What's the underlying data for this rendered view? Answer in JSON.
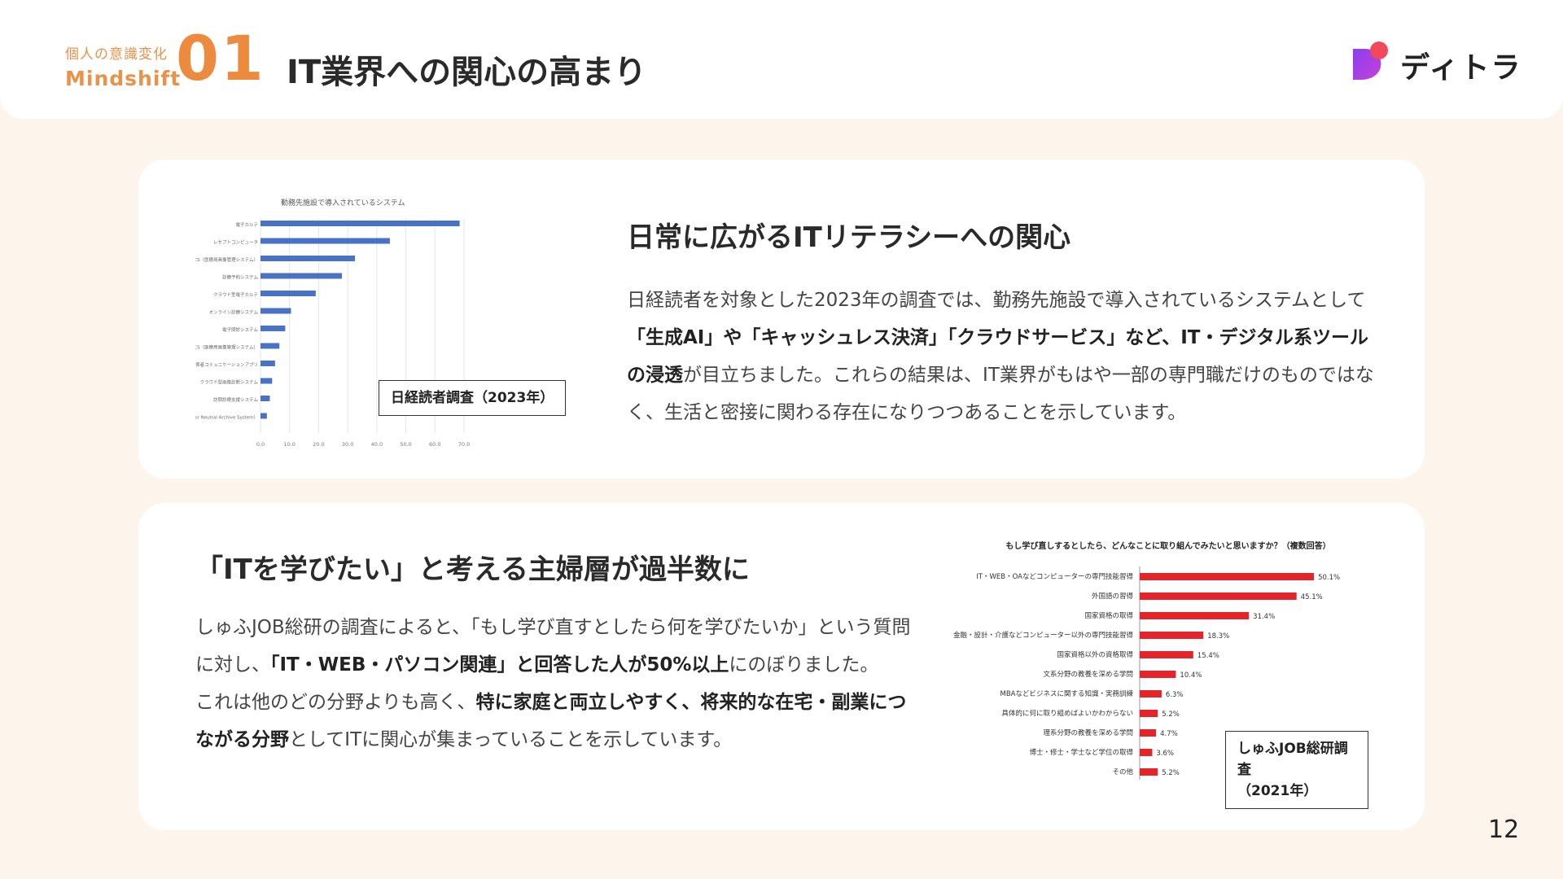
{
  "header": {
    "mindset_jp": "個人の意識変化",
    "mindset_en": "Mindshift",
    "number": "01",
    "title": "IT業界への関心の高まり",
    "logo_text": "ディトラ"
  },
  "card1": {
    "title": "日常に広がるITリテラシーへの関心",
    "body": [
      {
        "text": "日経読者を対象とした2023年の調査では、勤務先施設で導入されているシステムとして",
        "bold": false
      },
      {
        "text": "「生成AI」や「キャッシュレス決済」「クラウドサービス」など、IT・デジタル系ツールの浸透",
        "bold": true
      },
      {
        "text": "が目立ちました。これらの結果は、IT業界がもはや一部の専門職だけのものではなく、生活と密接に関わる存在になりつつあることを示しています。",
        "bold": false
      }
    ],
    "source": "日経読者調査（2023年）"
  },
  "card2": {
    "title": "「ITを学びたい」と考える主婦層が過半数に",
    "body1": [
      {
        "text": "しゅふJOB総研の調査によると、「もし学び直すとしたら何を学びたいか」という質問に対し、",
        "bold": false
      },
      {
        "text": "「IT・WEB・パソコン関連」と回答した人が50%以上",
        "bold": true
      },
      {
        "text": "にのぼりました。",
        "bold": false
      }
    ],
    "body2": [
      {
        "text": " これは他のどの分野よりも高く、",
        "bold": false
      },
      {
        "text": "特に家庭と両立しやすく、将来的な在宅・副業につながる分野",
        "bold": true
      },
      {
        "text": "としてITに関心が集まっていることを示しています。",
        "bold": false
      }
    ],
    "source_line1": "しゅふJOB総研調査",
    "source_line2": "（2021年）"
  },
  "page_number": "12",
  "colors": {
    "accent": "#ec8b3e",
    "bar_blue": "#4a72c4",
    "bar_red": "#e5242a",
    "background": "#fdf4ec"
  },
  "chart_data": [
    {
      "type": "bar",
      "orientation": "horizontal",
      "title": "勤務先施設で導入されているシステム",
      "categories": [
        "電子カルテ",
        "レセプトコンピュータ",
        "PACS（医療用画像管理システム）",
        "診療予約システム",
        "クラウド型電子カルテ",
        "オンライン診療システム",
        "電子問診システム",
        "クラウド型PACS（医療用画像管理システム）",
        "医療関係者コミュニケーションアプリ",
        "クラウド型画像診断システム",
        "訪問診療支援システム",
        "VNAシステム（Vendor Neutral Archive System）"
      ],
      "values": [
        68.5,
        44.5,
        32.5,
        28.0,
        19.0,
        10.5,
        8.5,
        6.5,
        5.0,
        4.0,
        3.2,
        2.2
      ],
      "xticks": [
        "0.0",
        "10.0",
        "20.0",
        "30.0",
        "40.0",
        "50.0",
        "60.0",
        "70.0"
      ],
      "xlim": [
        0,
        70
      ],
      "grid": true
    },
    {
      "type": "bar",
      "orientation": "horizontal",
      "title": "もし学び直しするとしたら、どんなことに取り組んでみたいと思いますか？（複数回答）",
      "categories": [
        "IT・WEB・OAなどコンピューターの専門技能習得",
        "外国語の習得",
        "国家資格の取得",
        "金融・設計・介護などコンピューター以外の専門技能習得",
        "国家資格以外の資格取得",
        "文系分野の教養を深める学問",
        "MBAなどビジネスに関する知識・実務訓練",
        "具体的に何に取り組めばよいかわからない",
        "理系分野の教養を深める学問",
        "博士・修士・学士など学位の取得",
        "その他"
      ],
      "values": [
        50.1,
        45.1,
        31.4,
        18.3,
        15.4,
        10.4,
        6.3,
        5.2,
        4.7,
        3.6,
        5.2
      ],
      "labels": [
        "50.1%",
        "45.1%",
        "31.4%",
        "18.3%",
        "15.4%",
        "10.4%",
        "6.3%",
        "5.2%",
        "4.7%",
        "3.6%",
        "5.2%"
      ],
      "xlim": [
        0,
        55
      ]
    }
  ]
}
